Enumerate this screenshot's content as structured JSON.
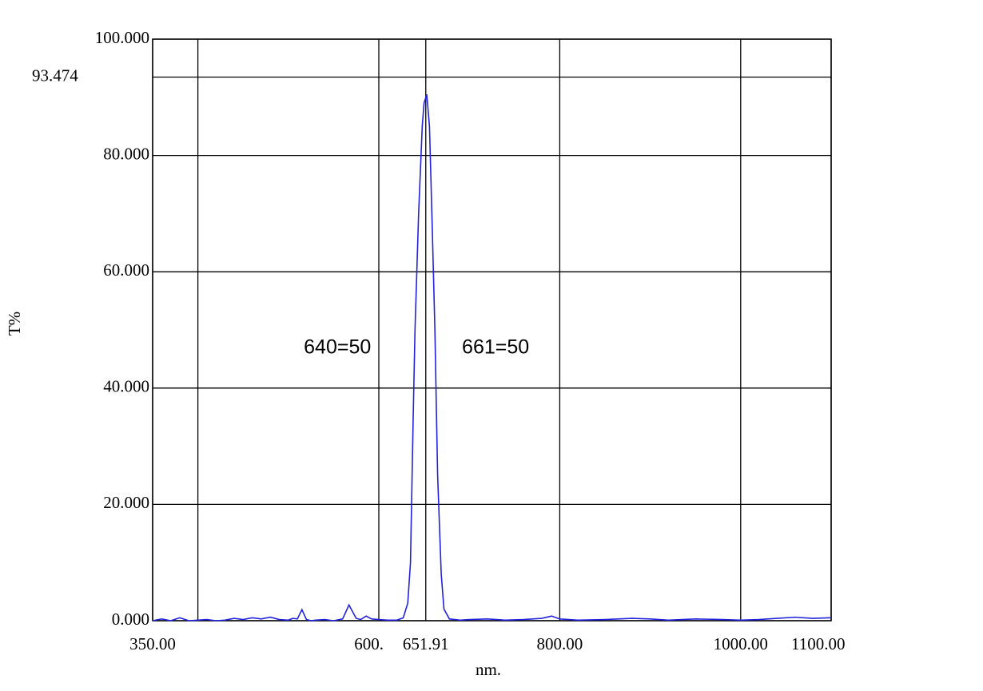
{
  "chart_data": {
    "type": "line",
    "x_label": "nm.",
    "y_label": "T%",
    "annotations": [
      {
        "text": "640=50",
        "x": 640,
        "y": 50
      },
      {
        "text": "661=50",
        "x": 661,
        "y": 50
      }
    ],
    "x": [
      350,
      360,
      370,
      380,
      390,
      400,
      410,
      420,
      430,
      440,
      450,
      460,
      470,
      480,
      490,
      500,
      505,
      510,
      515,
      520,
      525,
      530,
      540,
      550,
      560,
      567,
      575,
      580,
      586,
      592,
      600,
      610,
      620,
      627,
      632,
      635,
      638,
      640,
      644,
      648,
      650,
      653,
      656,
      659,
      662,
      665,
      669,
      672,
      678,
      690,
      700,
      720,
      740,
      760,
      780,
      791,
      800,
      820,
      850,
      880,
      900,
      920,
      950,
      980,
      1000,
      1020,
      1040,
      1060,
      1080,
      1100
    ],
    "series": [
      {
        "name": "T%",
        "color": "#2222dd",
        "values": [
          0,
          0.3,
          0,
          0.5,
          0,
          0.1,
          0.2,
          0,
          0.1,
          0.4,
          0.2,
          0.5,
          0.3,
          0.6,
          0.2,
          0.1,
          0.4,
          0.3,
          1.9,
          0.2,
          0,
          0.1,
          0.2,
          0,
          0.3,
          2.7,
          0.4,
          0.2,
          0.8,
          0.3,
          0.2,
          0.1,
          0.1,
          0.5,
          3,
          10,
          35,
          50,
          70,
          85,
          89,
          90.5,
          85,
          68,
          50,
          25,
          8,
          2,
          0.3,
          0.1,
          0.2,
          0.3,
          0.1,
          0.2,
          0.4,
          0.8,
          0.3,
          0.1,
          0.2,
          0.4,
          0.3,
          0.1,
          0.3,
          0.2,
          0.1,
          0.2,
          0.4,
          0.6,
          0.4,
          0.5
        ]
      }
    ],
    "xlim": [
      350,
      1100
    ],
    "ylim": [
      0,
      100
    ],
    "xticks": [
      {
        "value": 350,
        "label": "350.00"
      },
      {
        "value": 400,
        "label": null
      },
      {
        "value": 600,
        "label": "600."
      },
      {
        "value": 651.91,
        "label": "651.91"
      },
      {
        "value": 800,
        "label": "800.00"
      },
      {
        "value": 1000,
        "label": "1000.00"
      },
      {
        "value": 1100,
        "label": "1100.00"
      }
    ],
    "yticks": [
      {
        "value": 0,
        "label": "0.000"
      },
      {
        "value": 20,
        "label": "20.000"
      },
      {
        "value": 40,
        "label": "40.000"
      },
      {
        "value": 60,
        "label": "60.000"
      },
      {
        "value": 80,
        "label": "80.000"
      },
      93.474,
      {
        "value": 100,
        "label": "100.000"
      }
    ],
    "grid": true
  }
}
